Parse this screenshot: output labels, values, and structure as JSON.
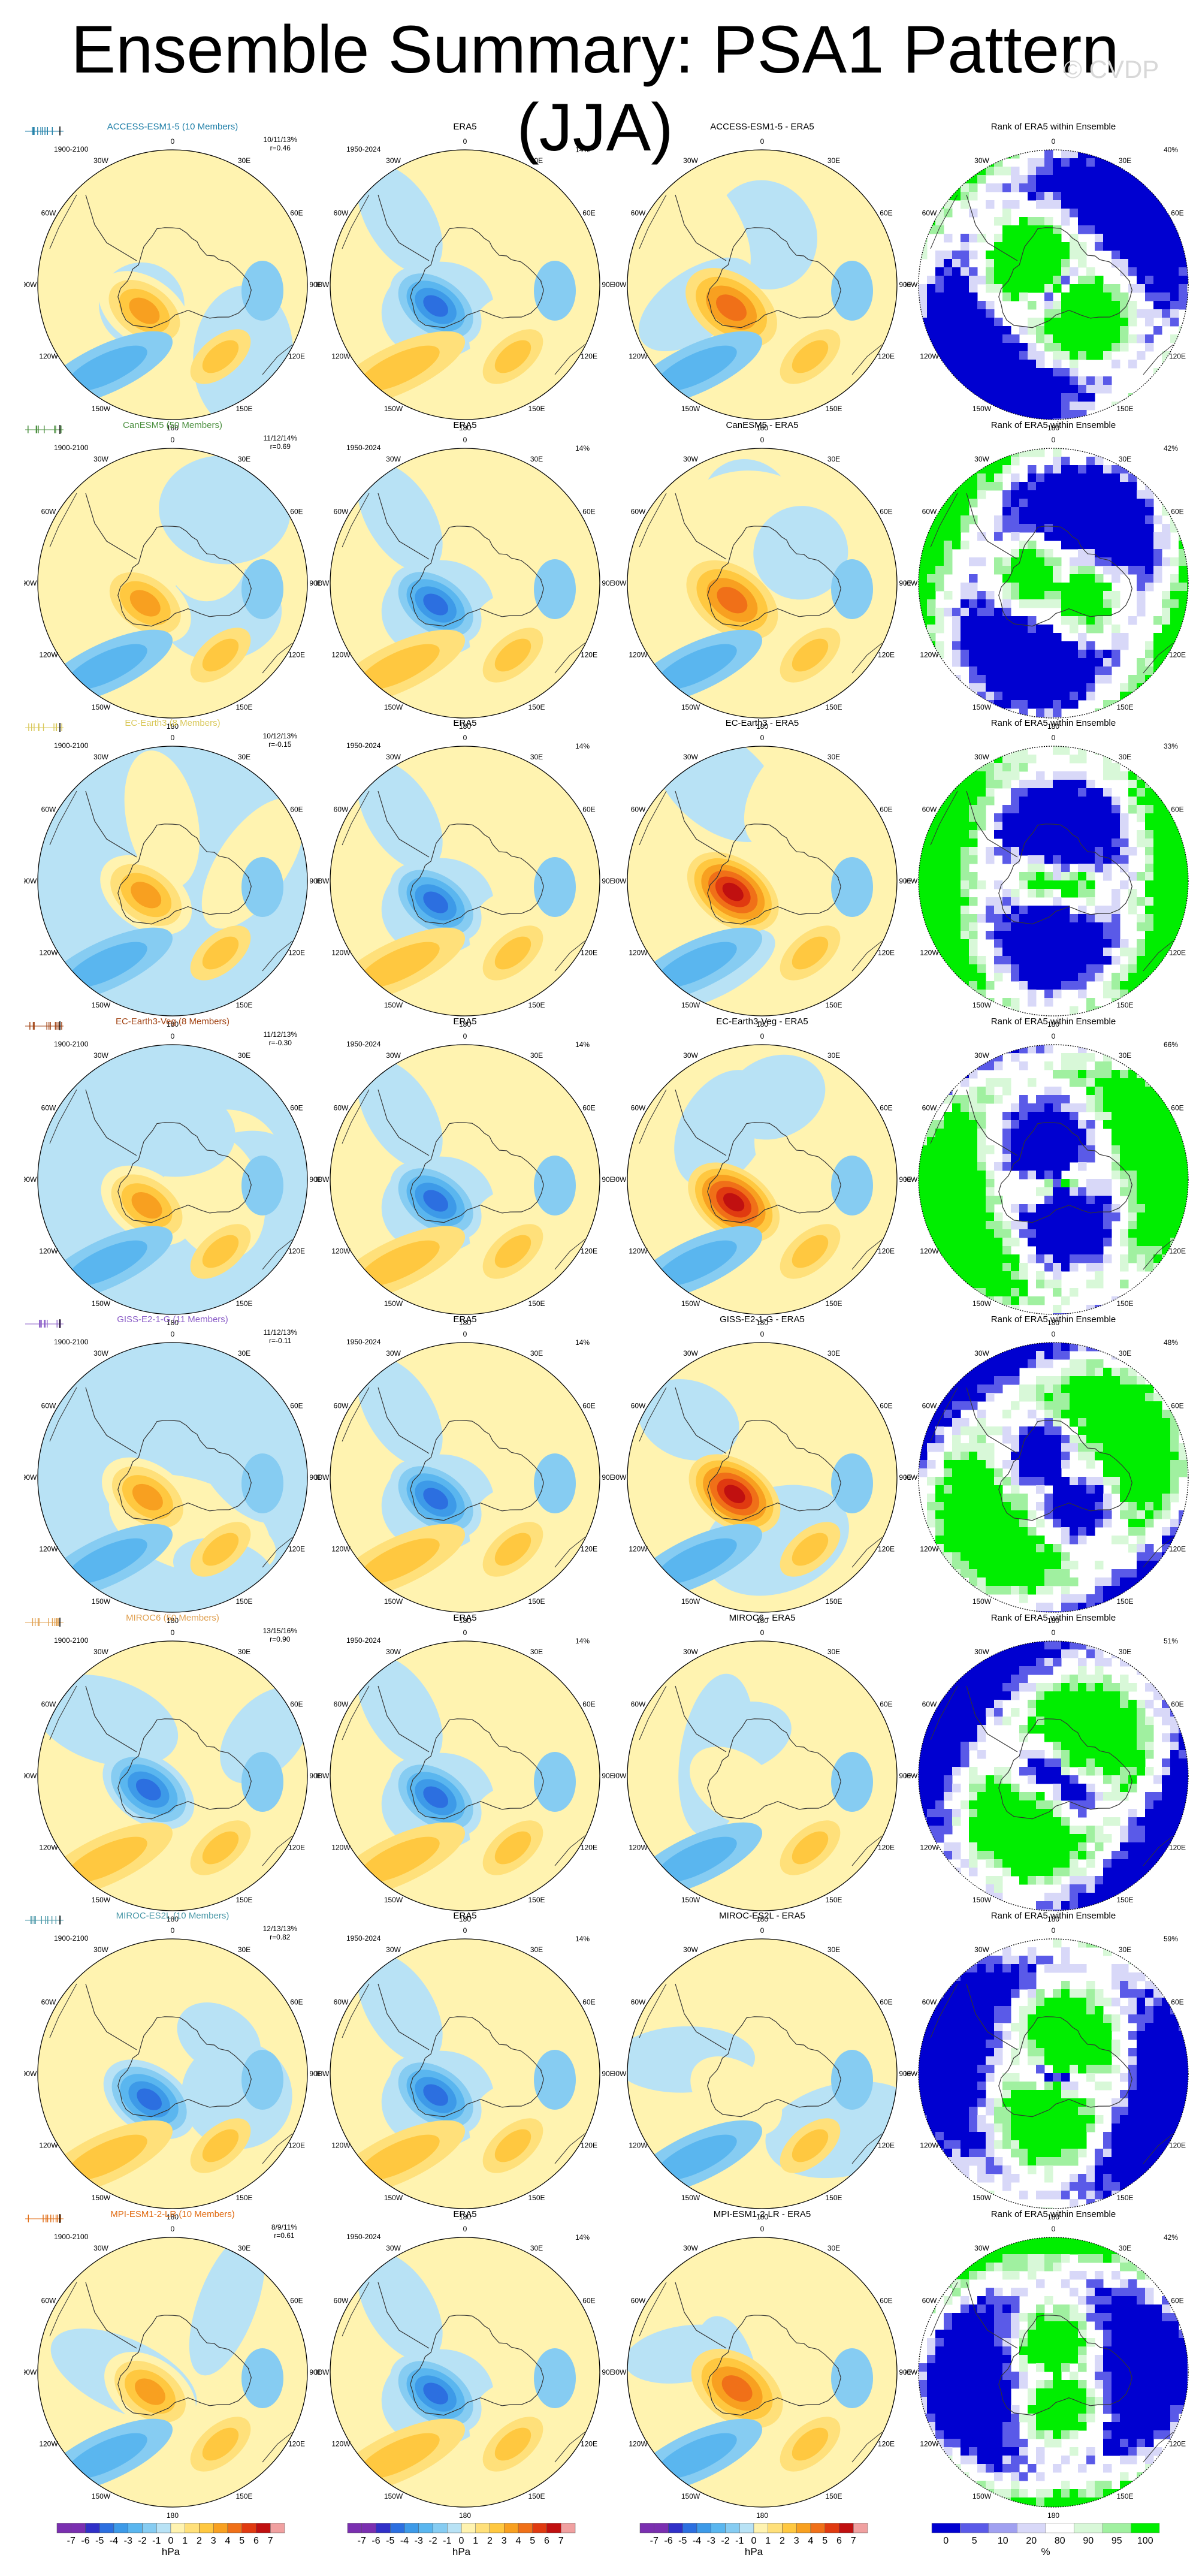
{
  "title": "Ensemble Summary: PSA1 Pattern (JJA)",
  "watermark": "© CVDP",
  "colors": {
    "model_title": [
      "#1f7fa8",
      "#4b8f3f",
      "#d9c85a",
      "#a04010",
      "#8a5cc7",
      "#e0a050",
      "#4a98a8",
      "#e06a10"
    ],
    "contour": [
      "#7a2fb0",
      "#3030c8",
      "#2c6fe0",
      "#3d9ae8",
      "#5ab6ef",
      "#86ccf2",
      "#b8e2f5",
      "#fff3b0",
      "#ffe07a",
      "#ffc840",
      "#f8a020",
      "#f07018",
      "#e03a10",
      "#c01010",
      "#f0a0a0"
    ],
    "rank": [
      "#0000d0",
      "#5a5ae8",
      "#a0a0f0",
      "#d8d8f8",
      "#ffffff",
      "#d8f8d8",
      "#a0f0a0",
      "#00ee00"
    ]
  },
  "map_labels": {
    "lon": [
      "0",
      "30E",
      "60E",
      "90E",
      "120E",
      "150E",
      "180",
      "150W",
      "120W",
      "90W",
      "60W",
      "30W"
    ]
  },
  "rows": [
    {
      "model": "ACCESS-ESM1-5 (10 Members)",
      "diff": "ACCESS-ESM1-5 - ERA5",
      "rank_text": "10/11/13%",
      "r": "r=0.46",
      "pct": "40%"
    },
    {
      "model": "CanESM5 (50 Members)",
      "diff": "CanESM5 - ERA5",
      "rank_text": "11/12/14%",
      "r": "r=0.69",
      "pct": "42%"
    },
    {
      "model": "EC-Earth3 (8 Members)",
      "diff": "EC-Earth3 - ERA5",
      "rank_text": "10/12/13%",
      "r": "r=-0.15",
      "pct": "33%"
    },
    {
      "model": "EC-Earth3-Veg (8 Members)",
      "diff": "EC-Earth3-Veg - ERA5",
      "rank_text": "11/12/13%",
      "r": "r=-0.30",
      "pct": "66%"
    },
    {
      "model": "GISS-E2-1-G (11 Members)",
      "diff": "GISS-E2-1-G - ERA5",
      "rank_text": "11/12/13%",
      "r": "r=-0.11",
      "pct": "48%"
    },
    {
      "model": "MIROC6 (50 Members)",
      "diff": "MIROC6 - ERA5",
      "rank_text": "13/15/16%",
      "r": "r=0.90",
      "pct": "51%"
    },
    {
      "model": "MIROC-ES2L (10 Members)",
      "diff": "MIROC-ES2L - ERA5",
      "rank_text": "12/13/13%",
      "r": "r=0.82",
      "pct": "59%"
    },
    {
      "model": "MPI-ESM1-2-LR (10 Members)",
      "diff": "MPI-ESM1-2-LR - ERA5",
      "rank_text": "8/9/11%",
      "r": "r=0.61",
      "pct": "42%"
    }
  ],
  "era5": {
    "title": "ERA5",
    "period": "1950-2024",
    "pct": "14%"
  },
  "model_period": "1900-2100",
  "rank_title": "Rank of ERA5 within Ensemble",
  "colorbars": {
    "contour_ticks": [
      "-7",
      "-6",
      "-5",
      "-4",
      "-3",
      "-2",
      "-1",
      "0",
      "1",
      "2",
      "3",
      "4",
      "5",
      "6",
      "7"
    ],
    "contour_unit": "hPa",
    "rank_ticks": [
      "0",
      "5",
      "10",
      "20",
      "80",
      "90",
      "95",
      "100"
    ],
    "rank_unit": "%"
  },
  "chart_data": {
    "type": "heatmap",
    "title": "Ensemble Summary: PSA1 Pattern (JJA)",
    "projection": "south polar stereographic",
    "panels_per_row": [
      "model ensemble mean PSA1 pattern",
      "ERA5 PSA1 pattern",
      "model minus ERA5 difference",
      "rank of ERA5 within ensemble"
    ],
    "contour_levels_hPa": [
      -7,
      -6,
      -5,
      -4,
      -3,
      -2,
      -1,
      0,
      1,
      2,
      3,
      4,
      5,
      6,
      7
    ],
    "rank_levels_pct": [
      0,
      5,
      10,
      20,
      80,
      90,
      95,
      100
    ],
    "rows": [
      {
        "model": "ACCESS-ESM1-5",
        "members": 10,
        "pattern_cor": 0.46,
        "pct_var": [
          10,
          11,
          13
        ],
        "era5_pct_var": 14,
        "rank_area_pct": 40
      },
      {
        "model": "CanESM5",
        "members": 50,
        "pattern_cor": 0.69,
        "pct_var": [
          11,
          12,
          14
        ],
        "era5_pct_var": 14,
        "rank_area_pct": 42
      },
      {
        "model": "EC-Earth3",
        "members": 8,
        "pattern_cor": -0.15,
        "pct_var": [
          10,
          12,
          13
        ],
        "era5_pct_var": 14,
        "rank_area_pct": 33
      },
      {
        "model": "EC-Earth3-Veg",
        "members": 8,
        "pattern_cor": -0.3,
        "pct_var": [
          11,
          12,
          13
        ],
        "era5_pct_var": 14,
        "rank_area_pct": 66
      },
      {
        "model": "GISS-E2-1-G",
        "members": 11,
        "pattern_cor": -0.11,
        "pct_var": [
          11,
          12,
          13
        ],
        "era5_pct_var": 14,
        "rank_area_pct": 48
      },
      {
        "model": "MIROC6",
        "members": 50,
        "pattern_cor": 0.9,
        "pct_var": [
          13,
          15,
          16
        ],
        "era5_pct_var": 14,
        "rank_area_pct": 51
      },
      {
        "model": "MIROC-ES2L",
        "members": 10,
        "pattern_cor": 0.82,
        "pct_var": [
          12,
          13,
          13
        ],
        "era5_pct_var": 14,
        "rank_area_pct": 59
      },
      {
        "model": "MPI-ESM1-2-LR",
        "members": 10,
        "pattern_cor": 0.61,
        "pct_var": [
          8,
          9,
          11
        ],
        "era5_pct_var": 14,
        "rank_area_pct": 42
      }
    ]
  }
}
